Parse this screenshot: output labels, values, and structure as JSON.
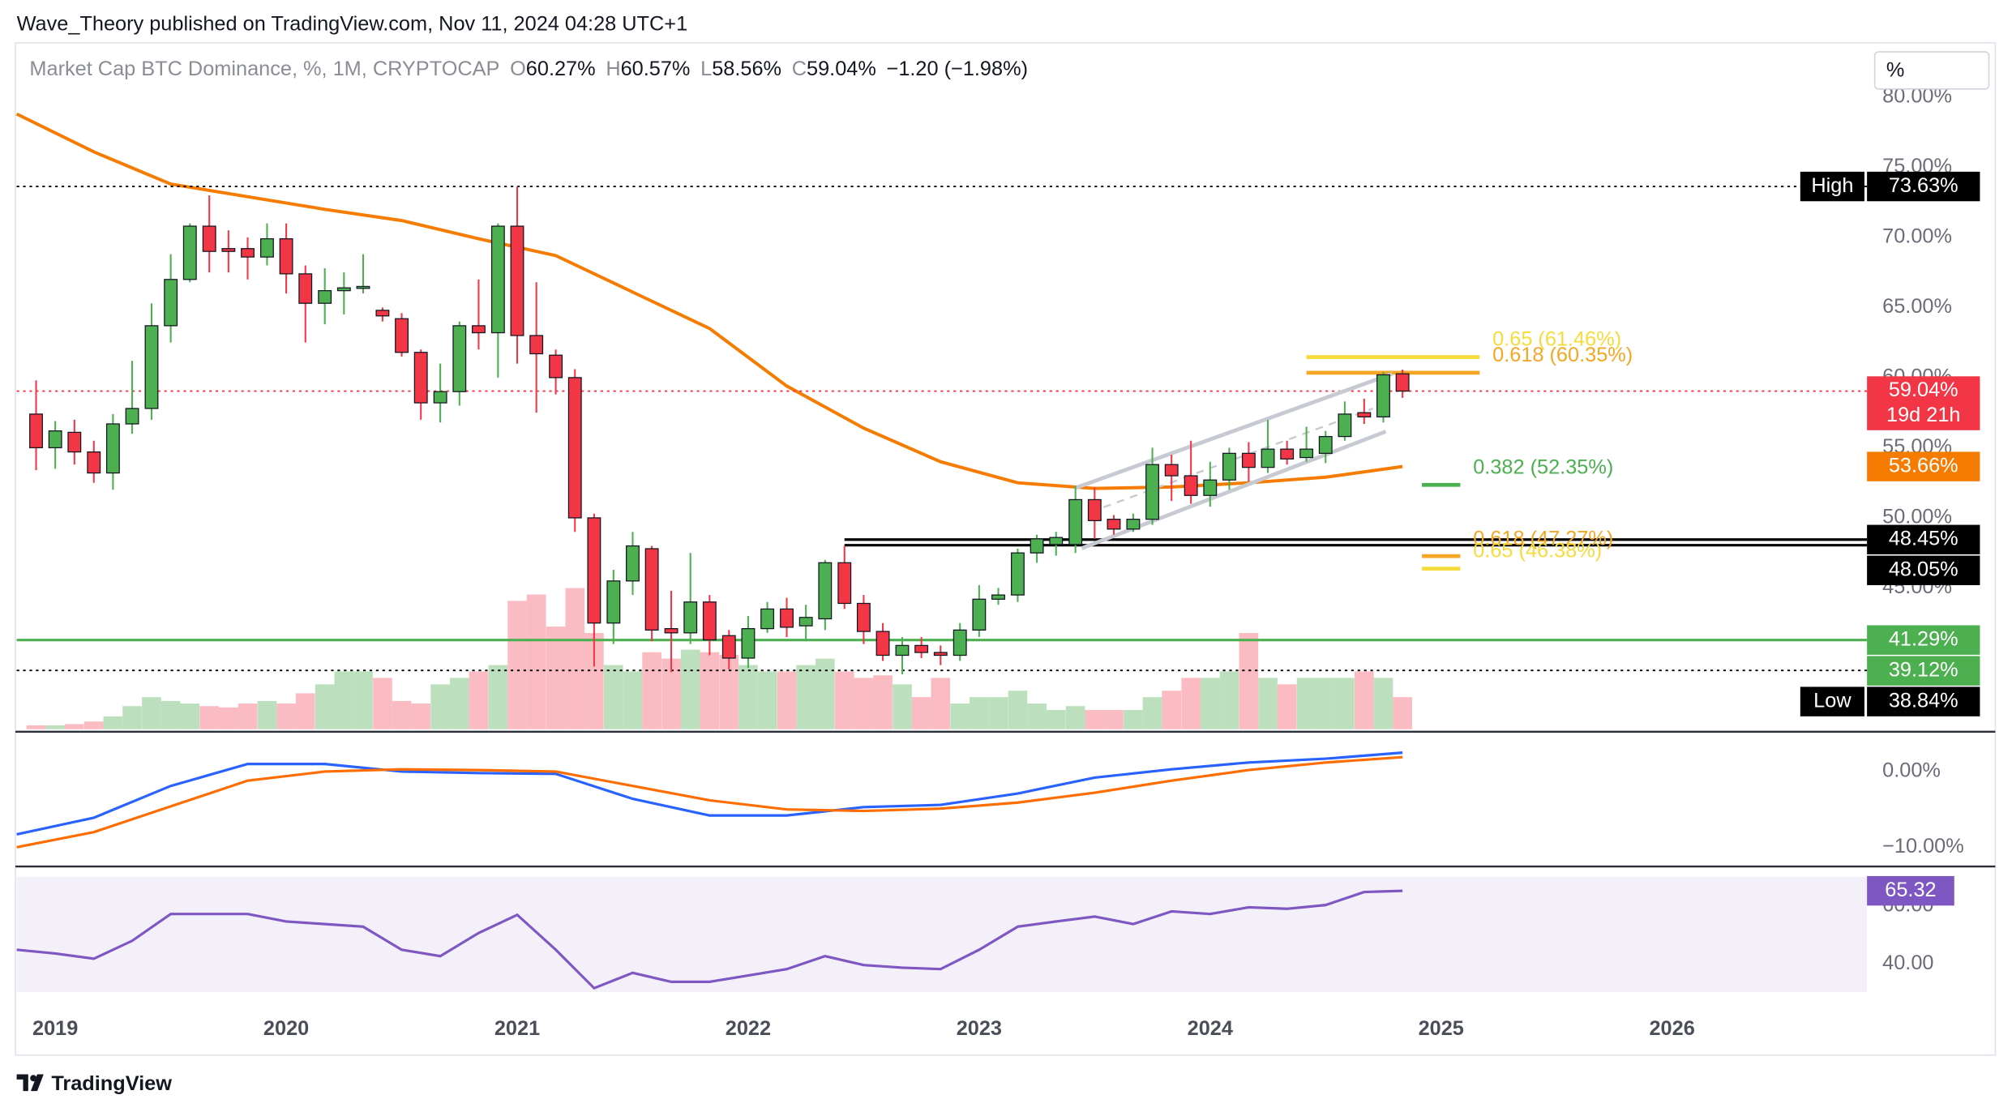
{
  "header": "Wave_Theory published on TradingView.com, Nov 11, 2024 04:28 UTC+1",
  "footer": "TradingView",
  "chart_data": [
    {
      "type": "candlestick",
      "title": "Market Cap BTC Dominance, %, 1M, CRYPTOCAP",
      "legend": [
        {
          "key": "O",
          "value": "60.27%"
        },
        {
          "key": "H",
          "value": "60.57%"
        },
        {
          "key": "L",
          "value": "58.56%"
        },
        {
          "key": "C",
          "value": "59.04%"
        }
      ],
      "change": "−1.20 (−1.98%)",
      "unit_button": "%",
      "x": [
        2018.917,
        2019,
        2019.083,
        2019.167,
        2019.25,
        2019.333,
        2019.417,
        2019.5,
        2019.583,
        2019.667,
        2019.75,
        2019.833,
        2019.917,
        2020,
        2020.083,
        2020.167,
        2020.25,
        2020.333,
        2020.417,
        2020.5,
        2020.583,
        2020.667,
        2020.75,
        2020.833,
        2020.917,
        2021,
        2021.083,
        2021.167,
        2021.25,
        2021.333,
        2021.417,
        2021.5,
        2021.583,
        2021.667,
        2021.75,
        2021.833,
        2021.917,
        2022,
        2022.083,
        2022.167,
        2022.25,
        2022.333,
        2022.417,
        2022.5,
        2022.583,
        2022.667,
        2022.75,
        2022.833,
        2022.917,
        2023,
        2023.083,
        2023.167,
        2023.25,
        2023.333,
        2023.417,
        2023.5,
        2023.583,
        2023.667,
        2023.75,
        2023.833,
        2023.917,
        2024,
        2024.083,
        2024.167,
        2024.25,
        2024.333,
        2024.417,
        2024.5,
        2024.583,
        2024.667,
        2024.75,
        2024.833
      ],
      "open": [
        57.4,
        55.0,
        56.1,
        54.7,
        53.2,
        56.7,
        57.8,
        63.7,
        67.0,
        70.8,
        69.2,
        69.2,
        68.6,
        69.9,
        67.4,
        65.3,
        66.2,
        66.4,
        64.8,
        64.2,
        61.8,
        58.2,
        59.0,
        63.7,
        63.2,
        70.8,
        63.0,
        61.6,
        60.0,
        50.0,
        42.5,
        45.5,
        47.8,
        42.1,
        41.8,
        44.0,
        41.6,
        40.0,
        42.1,
        43.5,
        42.3,
        42.8,
        46.8,
        43.9,
        41.9,
        40.2,
        40.9,
        40.4,
        40.2,
        42.0,
        44.2,
        44.5,
        47.5,
        48.1,
        48.1,
        51.3,
        49.9,
        49.2,
        49.9,
        53.8,
        53.0,
        51.6,
        52.7,
        54.6,
        53.6,
        54.9,
        54.3,
        54.6,
        55.8,
        57.5,
        57.2,
        60.27
      ],
      "high": [
        59.8,
        56.9,
        57.0,
        55.5,
        57.4,
        61.2,
        65.3,
        68.8,
        71.0,
        73.0,
        70.5,
        70.0,
        71.0,
        71.0,
        68.0,
        67.8,
        67.5,
        68.8,
        65.0,
        64.6,
        62.0,
        61.0,
        64.0,
        67.0,
        71.0,
        73.63,
        66.8,
        62.0,
        60.6,
        50.3,
        46.3,
        49.0,
        48.0,
        44.8,
        47.5,
        44.5,
        42.0,
        43.0,
        44.0,
        44.3,
        43.8,
        47.0,
        48.0,
        44.5,
        42.5,
        41.5,
        41.5,
        40.9,
        42.5,
        45.2,
        45.0,
        47.8,
        48.8,
        49.0,
        52.3,
        52.2,
        50.2,
        50.3,
        55.0,
        54.5,
        55.5,
        54.0,
        55.0,
        55.4,
        57.0,
        55.5,
        56.5,
        56.2,
        58.3,
        58.5,
        60.4,
        60.57
      ],
      "low": [
        53.4,
        53.5,
        53.8,
        52.5,
        52.0,
        56.0,
        57.0,
        62.5,
        66.8,
        67.5,
        67.5,
        67.0,
        68.0,
        66.0,
        62.5,
        63.8,
        64.5,
        66.0,
        64.0,
        61.5,
        57.0,
        56.8,
        58.0,
        62.0,
        60.0,
        61.0,
        57.5,
        58.8,
        49.0,
        39.4,
        41.0,
        44.5,
        41.2,
        39.0,
        41.0,
        40.2,
        39.2,
        39.3,
        41.8,
        41.5,
        41.2,
        42.0,
        43.5,
        41.0,
        39.8,
        38.84,
        40.0,
        39.5,
        39.8,
        41.5,
        43.8,
        44.0,
        46.8,
        47.3,
        47.5,
        48.5,
        48.8,
        49.0,
        49.5,
        51.2,
        51.0,
        50.8,
        52.0,
        52.6,
        53.2,
        53.8,
        54.0,
        53.9,
        55.5,
        56.7,
        56.8,
        58.56
      ],
      "close": [
        55.0,
        56.2,
        54.7,
        53.2,
        56.7,
        57.8,
        63.7,
        67.0,
        70.8,
        69.0,
        69.0,
        68.6,
        69.9,
        67.4,
        65.3,
        66.2,
        66.4,
        66.5,
        64.4,
        61.8,
        58.2,
        59.0,
        63.7,
        63.2,
        70.8,
        63.0,
        61.7,
        60.0,
        50.0,
        42.5,
        45.5,
        48.0,
        42.0,
        41.8,
        44.0,
        41.3,
        40.0,
        42.1,
        43.5,
        42.2,
        42.9,
        46.8,
        43.9,
        41.9,
        40.2,
        40.9,
        40.4,
        40.2,
        42.0,
        44.2,
        44.5,
        47.5,
        48.5,
        48.6,
        51.3,
        49.8,
        49.2,
        49.9,
        53.8,
        53.0,
        51.6,
        52.7,
        54.6,
        53.6,
        54.9,
        54.2,
        54.9,
        55.8,
        57.4,
        57.2,
        60.2,
        59.04
      ],
      "up_color": "#4caf50",
      "down_color": "#f23645",
      "xlim": [
        2018.833,
        2026.844
      ],
      "xticks": [
        2019,
        2020,
        2021,
        2022,
        2023,
        2024,
        2025,
        2026
      ],
      "ylim": [
        34.93,
        83.69
      ],
      "yticks": [
        {
          "value": 80,
          "label": "80.00%"
        },
        {
          "value": 75,
          "label": "75.00%"
        },
        {
          "value": 70,
          "label": "70.00%"
        },
        {
          "value": 65,
          "label": "65.00%"
        },
        {
          "value": 60,
          "label": "60.00%"
        },
        {
          "value": 55,
          "label": "55.00%"
        },
        {
          "value": 50,
          "label": "50.00%"
        },
        {
          "value": 45,
          "label": "45.00%"
        }
      ],
      "moving_average": {
        "color": "#f57c00",
        "x": [
          2018.833,
          2019.167,
          2019.5,
          2019.833,
          2020.167,
          2020.5,
          2020.833,
          2021.167,
          2021.5,
          2021.833,
          2022.167,
          2022.5,
          2022.833,
          2023.167,
          2023.5,
          2023.833,
          2024.167,
          2024.5,
          2024.833
        ],
        "values": [
          78.8,
          76.1,
          73.8,
          72.9,
          72.0,
          71.2,
          69.9,
          68.7,
          66.1,
          63.5,
          59.4,
          56.4,
          54.0,
          52.5,
          52.1,
          52.2,
          52.5,
          52.9,
          53.66
        ]
      },
      "volume": {
        "ylim": [
          0,
          533
        ],
        "values": [
          3,
          3,
          4,
          6,
          10,
          18,
          25,
          22,
          20,
          18,
          17,
          20,
          22,
          20,
          28,
          35,
          45,
          45,
          40,
          22,
          20,
          35,
          40,
          45,
          50,
          100,
          105,
          80,
          110,
          75,
          50,
          45,
          60,
          55,
          62,
          60,
          58,
          50,
          45,
          45,
          50,
          55,
          45,
          40,
          42,
          35,
          25,
          40,
          20,
          25,
          25,
          30,
          20,
          15,
          18,
          15,
          15,
          15,
          25,
          30,
          40,
          40,
          45,
          75,
          40,
          35,
          40,
          40,
          40,
          45,
          40,
          25
        ],
        "up_color": "#a5d6a7",
        "down_color": "#f8a5ad"
      },
      "price_lines": [
        {
          "tag": "High",
          "value": 73.63,
          "label": "73.63%",
          "color": "#000000",
          "style": "dotted"
        },
        {
          "value": 59.04,
          "label": "59.04%",
          "countdown": "19d 21h",
          "color": "#f23645",
          "style": "dotted"
        },
        {
          "value": 53.66,
          "label": "53.66%",
          "color": "#f57c00",
          "style": "none"
        },
        {
          "value": 48.45,
          "label": "48.45%",
          "color": "#000000",
          "style": "solid",
          "x_start": 2022.417
        },
        {
          "value": 48.05,
          "label": "48.05%",
          "color": "#000000",
          "style": "solid",
          "x_start": 2022.417
        },
        {
          "value": 41.29,
          "label": "41.29%",
          "color": "#4caf50",
          "style": "solid"
        },
        {
          "value": 39.12,
          "label": "39.12%",
          "color": "#4caf50",
          "line_color": "#000000",
          "style": "dotted"
        },
        {
          "tag": "Low",
          "value": 38.84,
          "label": "38.84%",
          "color": "#000000",
          "style": "none"
        }
      ],
      "fib_levels": [
        {
          "value": 61.46,
          "label": "0.65 (61.46%)",
          "color": "#f5dc3c",
          "x": [
            2024.417,
            2025.167
          ]
        },
        {
          "value": 60.35,
          "label": "0.618 (60.35%)",
          "color": "#f5a623",
          "x": [
            2024.417,
            2025.167
          ]
        },
        {
          "value": 52.35,
          "label": "0.382 (52.35%)",
          "color": "#4caf50",
          "x": [
            2024.917,
            2025.083
          ]
        },
        {
          "value": 47.27,
          "label": "0.618 (47.27%)",
          "color": "#f5a623",
          "x": [
            2024.917,
            2025.083
          ]
        },
        {
          "value": 46.38,
          "label": "0.65 (46.38%)",
          "color": "#f5dc3c",
          "x": [
            2024.917,
            2025.083
          ]
        }
      ]
    },
    {
      "type": "line",
      "x": [
        2018.833,
        2019.167,
        2019.5,
        2019.833,
        2020.167,
        2020.5,
        2020.833,
        2021.167,
        2021.5,
        2021.833,
        2022.167,
        2022.5,
        2022.833,
        2023.167,
        2023.5,
        2023.833,
        2024.167,
        2024.5,
        2024.833
      ],
      "series": [
        {
          "color": "#2962ff",
          "values": [
            -8.3,
            -6.1,
            -1.9,
            1.0,
            1.0,
            0.0,
            -0.2,
            -0.3,
            -3.6,
            -5.8,
            -5.8,
            -4.7,
            -4.4,
            -2.9,
            -0.8,
            0.3,
            1.2,
            1.7,
            2.5
          ]
        },
        {
          "color": "#ff6d00",
          "values": [
            -10,
            -8,
            -4.6,
            -1.2,
            0,
            0.3,
            0.2,
            0,
            -1.9,
            -3.8,
            -5.0,
            -5.2,
            -4.9,
            -4.1,
            -2.8,
            -1.2,
            0.2,
            1.2,
            1.9
          ]
        }
      ],
      "ylim": [
        -12.2,
        4.92
      ],
      "yticks": [
        {
          "value": 0,
          "label": "0.00%"
        },
        {
          "value": -10,
          "label": "−10.00%"
        }
      ]
    },
    {
      "type": "line",
      "x": [
        2018.833,
        2019,
        2019.167,
        2019.333,
        2019.5,
        2019.667,
        2019.833,
        2020,
        2020.167,
        2020.333,
        2020.5,
        2020.667,
        2020.833,
        2021,
        2021.167,
        2021.333,
        2021.5,
        2021.667,
        2021.833,
        2022,
        2022.167,
        2022.333,
        2022.5,
        2022.667,
        2022.833,
        2023,
        2023.167,
        2023.333,
        2023.5,
        2023.667,
        2023.833,
        2024,
        2024.167,
        2024.333,
        2024.5,
        2024.667,
        2024.833
      ],
      "series": [
        {
          "color": "#7e57c2",
          "values": [
            44.9,
            43.6,
            41.8,
            48.0,
            57.3,
            57.3,
            57.3,
            54.7,
            53.8,
            52.9,
            44.9,
            42.7,
            50.7,
            57.0,
            44.9,
            31.6,
            36.9,
            33.8,
            33.8,
            36.0,
            38.2,
            42.7,
            39.6,
            38.7,
            38.2,
            44.9,
            52.9,
            54.7,
            56.4,
            53.8,
            58.2,
            57.3,
            59.6,
            59.1,
            60.4,
            64.9,
            65.32
          ]
        }
      ],
      "ylim": [
        30.2,
        70.2
      ],
      "yticks": [
        {
          "value": 60,
          "label": "60.00"
        },
        {
          "value": 40,
          "label": "40.00"
        }
      ]
    }
  ]
}
